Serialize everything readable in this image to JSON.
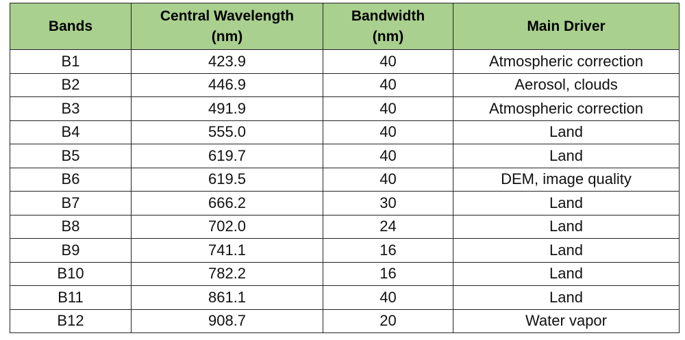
{
  "table": {
    "headers": [
      {
        "line1": "Bands",
        "line2": ""
      },
      {
        "line1": "Central Wavelength",
        "line2": "(nm)"
      },
      {
        "line1": "Bandwidth",
        "line2": "(nm)"
      },
      {
        "line1": "Main Driver",
        "line2": ""
      }
    ],
    "rows": [
      [
        "B1",
        "423.9",
        "40",
        "Atmospheric correction"
      ],
      [
        "B2",
        "446.9",
        "40",
        "Aerosol, clouds"
      ],
      [
        "B3",
        "491.9",
        "40",
        "Atmospheric correction"
      ],
      [
        "B4",
        "555.0",
        "40",
        "Land"
      ],
      [
        "B5",
        "619.7",
        "40",
        "Land"
      ],
      [
        "B6",
        "619.5",
        "40",
        "DEM, image quality"
      ],
      [
        "B7",
        "666.2",
        "30",
        "Land"
      ],
      [
        "B8",
        "702.0",
        "24",
        "Land"
      ],
      [
        "B9",
        "741.1",
        "16",
        "Land"
      ],
      [
        "B10",
        "782.2",
        "16",
        "Land"
      ],
      [
        "B11",
        "861.1",
        "40",
        "Land"
      ],
      [
        "B12",
        "908.7",
        "20",
        "Water vapor"
      ]
    ]
  },
  "colors": {
    "header_fill": "#a9d08e",
    "border": "#222222"
  }
}
